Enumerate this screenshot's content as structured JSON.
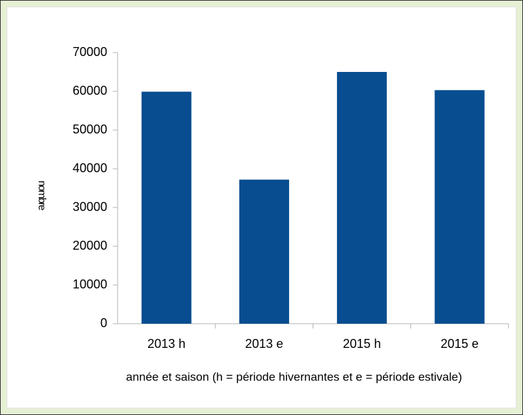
{
  "chart_data": {
    "type": "bar",
    "x_label": "année et saison (h = période hivernantes et e = période estivale)",
    "y_label": "nombre",
    "categories": [
      "2013 h",
      "2013 e",
      "2015 h",
      "2015 e"
    ],
    "values": [
      59900,
      37200,
      65000,
      60300
    ],
    "color": "#074d8f",
    "ylim": [
      0,
      70000
    ],
    "yticks": [
      0,
      10000,
      20000,
      30000,
      40000,
      50000,
      60000,
      70000
    ],
    "grid": false
  }
}
